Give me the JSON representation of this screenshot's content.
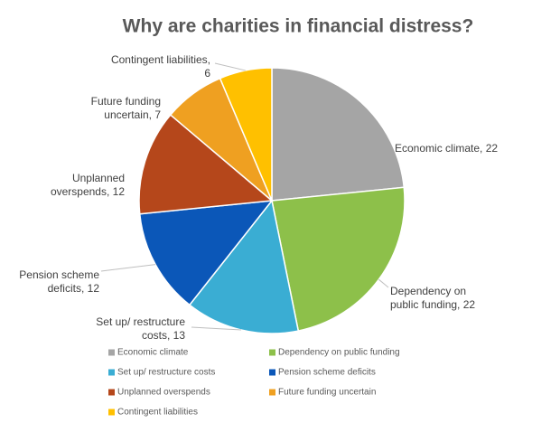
{
  "chart_data": {
    "type": "pie",
    "title": "Why are charities in financial distress?",
    "categories": [
      "Economic climate",
      "Dependency on public funding",
      "Set up/ restructure costs",
      "Pension scheme deficits",
      "Unplanned overspends",
      "Future funding uncertain",
      "Contingent liabilities"
    ],
    "values": [
      22,
      22,
      13,
      12,
      12,
      7,
      6
    ],
    "value_labels": [
      [
        "Economic climate, 22"
      ],
      [
        "Dependency on",
        "public funding, 22"
      ],
      [
        "Set up/ restructure",
        "costs, 13"
      ],
      [
        "Pension scheme",
        "deficits, 12"
      ],
      [
        "Unplanned",
        "overspends, 12"
      ],
      [
        "Future funding",
        "uncertain, 7"
      ],
      [
        "Contingent liabilities,",
        "6"
      ]
    ],
    "colors": [
      "#a5a5a5",
      "#8dc04a",
      "#3aadd3",
      "#0b57b8",
      "#b5471b",
      "#efa021",
      "#ffc000"
    ],
    "legend": "bottom"
  }
}
